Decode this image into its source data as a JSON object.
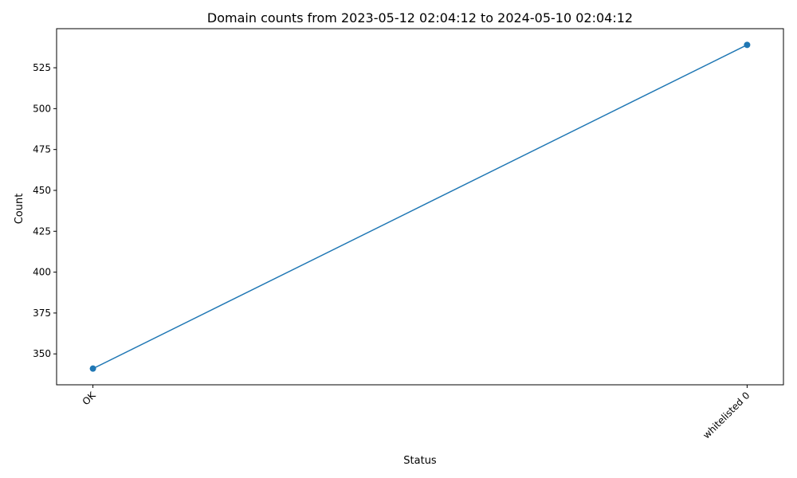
{
  "chart_data": {
    "type": "line",
    "title": "Domain counts from 2023-05-12 02:04:12 to 2024-05-10 02:04:12",
    "xlabel": "Status",
    "ylabel": "Count",
    "categories": [
      "OK",
      "whitelisted 0"
    ],
    "series": [
      {
        "values": [
          341,
          539
        ],
        "color": "#1f77b4",
        "marker": "circle"
      }
    ],
    "ylim": [
      331.1,
      548.9
    ],
    "yticks": [
      350,
      375,
      400,
      425,
      450,
      475,
      500,
      525
    ],
    "grid": false,
    "legend": "none"
  }
}
